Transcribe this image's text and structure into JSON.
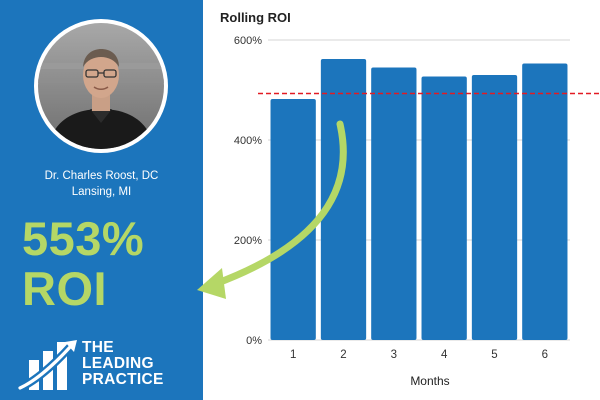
{
  "colors": {
    "panel": "#1c75bc",
    "bar": "#1c75bc",
    "accent": "#b5d766",
    "target_line": "#e21b23",
    "gridline": "#d4d4d4"
  },
  "profile": {
    "name": "Dr. Charles Roost, DC",
    "location": "Lansing, MI"
  },
  "headline": {
    "value": "553%",
    "label": "ROI"
  },
  "logo": {
    "line1": "THE",
    "line2": "LEADING",
    "line3": "PRACTICE"
  },
  "chart_data": {
    "type": "bar",
    "title": "Rolling ROI",
    "xlabel": "Months",
    "ylabel": "",
    "categories": [
      "1",
      "2",
      "3",
      "4",
      "5",
      "6"
    ],
    "values": [
      482,
      562,
      545,
      527,
      530,
      553
    ],
    "ylim": [
      0,
      600
    ],
    "yticks": [
      0,
      200,
      400,
      600
    ],
    "ytick_labels": [
      "0%",
      "200%",
      "400%",
      "600%"
    ],
    "reference_line": 493,
    "grid": true,
    "legend": "none"
  }
}
